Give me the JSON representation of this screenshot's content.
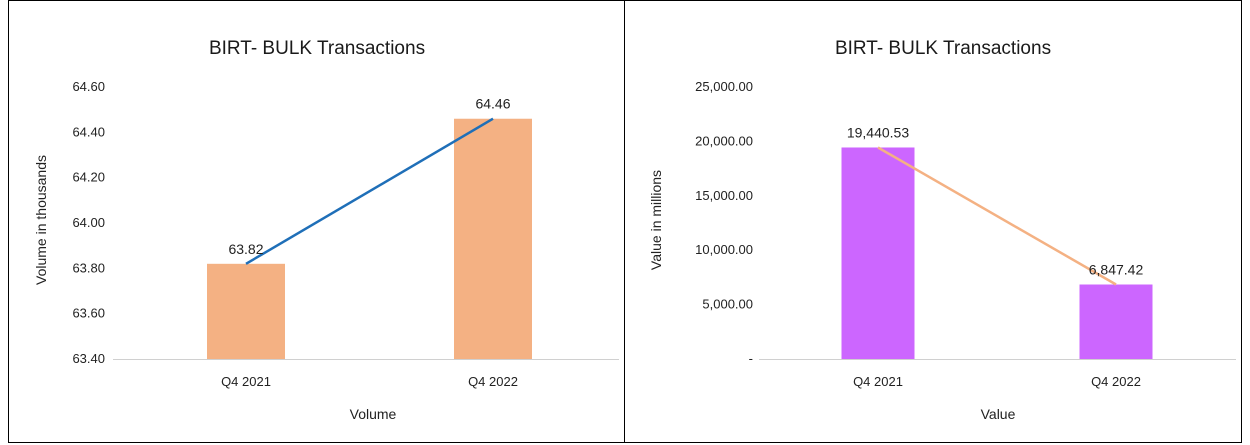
{
  "chart_data": [
    {
      "type": "bar",
      "title": "BIRT- BULK Transactions",
      "xlabel": "Volume",
      "ylabel": "Volume in thousands",
      "categories": [
        "Q4 2021",
        "Q4 2022"
      ],
      "values": [
        63.82,
        64.46
      ],
      "value_labels": [
        "63.82",
        "64.46"
      ],
      "ylim": [
        63.4,
        64.6
      ],
      "yticks": [
        63.4,
        63.6,
        63.8,
        64.0,
        64.2,
        64.4,
        64.6
      ],
      "ytick_labels": [
        "63.40",
        "63.60",
        "63.80",
        "64.00",
        "64.20",
        "64.40",
        "64.60"
      ],
      "overlay_line": true,
      "grid": false,
      "bar_color": "#F4B183",
      "line_color": "#1F6FB8"
    },
    {
      "type": "bar",
      "title": "BIRT- BULK Transactions",
      "xlabel": "Value",
      "ylabel": "Value in millions",
      "categories": [
        "Q4 2021",
        "Q4 2022"
      ],
      "values": [
        19440.53,
        6847.42
      ],
      "value_labels": [
        "19,440.53",
        "6,847.42"
      ],
      "ylim": [
        0,
        25000
      ],
      "yticks": [
        0,
        5000,
        10000,
        15000,
        20000,
        25000
      ],
      "ytick_labels": [
        "-",
        "5,000.00",
        "10,000.00",
        "15,000.00",
        "20,000.00",
        "25,000.00"
      ],
      "overlay_line": true,
      "grid": false,
      "bar_color": "#CC66FF",
      "line_color": "#F4B183"
    }
  ]
}
